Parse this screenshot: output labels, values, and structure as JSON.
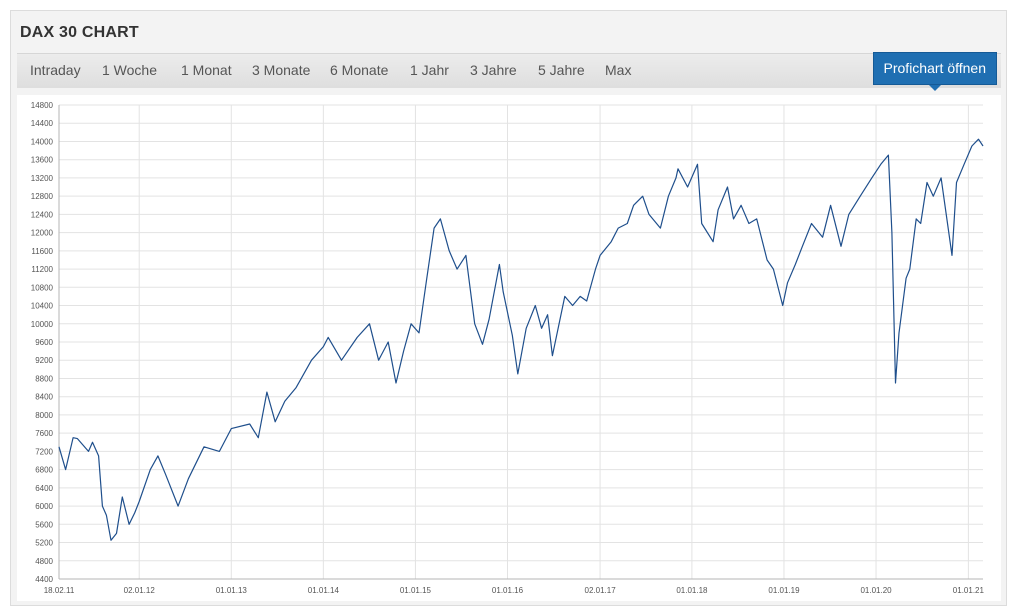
{
  "widget": {
    "title": "DAX 30 CHART",
    "tabs": [
      "Intraday",
      "1 Woche",
      "1 Monat",
      "3 Monate",
      "6 Monate",
      "1 Jahr",
      "3 Jahre",
      "5 Jahre",
      "Max"
    ],
    "pro_button": "Profichart öffnen"
  },
  "colors": {
    "line": "#1f4f8c",
    "grid": "#e3e3e3",
    "accent": "#1f6fb2"
  },
  "chart_data": {
    "type": "line",
    "title": "",
    "xlabel": "",
    "ylabel": "",
    "ylim": [
      4400,
      14800
    ],
    "yticks": [
      4400,
      4800,
      5200,
      5600,
      6000,
      6400,
      6800,
      7200,
      7600,
      8000,
      8400,
      8800,
      9200,
      9600,
      10000,
      10400,
      10800,
      11200,
      11600,
      12000,
      12400,
      12800,
      13200,
      13600,
      14000,
      14400,
      14800
    ],
    "xticks": [
      "18.02.11",
      "02.01.12",
      "01.01.13",
      "01.01.14",
      "01.01.15",
      "01.01.16",
      "02.01.17",
      "01.01.18",
      "01.01.19",
      "01.01.20",
      "01.01.21"
    ],
    "xtick_dates": [
      "2011-02-18",
      "2012-01-02",
      "2013-01-01",
      "2014-01-01",
      "2015-01-01",
      "2016-01-01",
      "2017-01-02",
      "2018-01-01",
      "2019-01-01",
      "2020-01-01",
      "2021-01-01"
    ],
    "grid": true,
    "series": [
      {
        "x": [
          "2011-02-18",
          "2011-03-16",
          "2011-04-15",
          "2011-05-02",
          "2011-06-15",
          "2011-07-01",
          "2011-07-25",
          "2011-08-09",
          "2011-08-25",
          "2011-09-12",
          "2011-10-04",
          "2011-10-27",
          "2011-11-23",
          "2011-12-15",
          "2012-01-02",
          "2012-02-15",
          "2012-03-16",
          "2012-04-15",
          "2012-06-04",
          "2012-07-15",
          "2012-09-15",
          "2012-11-15",
          "2013-01-01",
          "2013-03-15",
          "2013-04-18",
          "2013-05-22",
          "2013-06-24",
          "2013-08-01",
          "2013-09-15",
          "2013-11-15",
          "2014-01-01",
          "2014-01-20",
          "2014-03-14",
          "2014-05-15",
          "2014-07-03",
          "2014-08-08",
          "2014-09-15",
          "2014-10-16",
          "2014-11-15",
          "2014-12-15",
          "2015-01-15",
          "2015-02-15",
          "2015-03-16",
          "2015-04-10",
          "2015-05-15",
          "2015-06-15",
          "2015-07-20",
          "2015-08-24",
          "2015-09-24",
          "2015-10-20",
          "2015-11-30",
          "2015-12-15",
          "2016-01-20",
          "2016-02-11",
          "2016-03-15",
          "2016-04-20",
          "2016-05-15",
          "2016-06-08",
          "2016-06-27",
          "2016-08-15",
          "2016-09-15",
          "2016-10-15",
          "2016-11-10",
          "2016-12-15",
          "2017-01-02",
          "2017-02-15",
          "2017-03-15",
          "2017-04-20",
          "2017-05-15",
          "2017-06-20",
          "2017-07-15",
          "2017-08-29",
          "2017-09-30",
          "2017-10-30",
          "2017-11-07",
          "2017-12-15",
          "2018-01-23",
          "2018-02-09",
          "2018-03-26",
          "2018-04-15",
          "2018-05-22",
          "2018-06-15",
          "2018-07-15",
          "2018-08-15",
          "2018-09-15",
          "2018-10-26",
          "2018-11-20",
          "2018-12-27",
          "2019-01-15",
          "2019-02-15",
          "2019-03-15",
          "2019-04-20",
          "2019-06-03",
          "2019-07-05",
          "2019-08-15",
          "2019-09-15",
          "2019-10-30",
          "2019-12-15",
          "2020-01-20",
          "2020-02-19",
          "2020-03-04",
          "2020-03-18",
          "2020-04-01",
          "2020-04-29",
          "2020-05-14",
          "2020-06-08",
          "2020-06-26",
          "2020-07-21",
          "2020-08-15",
          "2020-09-15",
          "2020-10-28",
          "2020-11-15",
          "2020-12-15",
          "2021-01-15",
          "2021-02-10",
          "2021-02-28"
        ],
        "y": [
          7300,
          6800,
          7500,
          7480,
          7200,
          7400,
          7100,
          6000,
          5800,
          5250,
          5400,
          6200,
          5600,
          5850,
          6100,
          6800,
          7100,
          6700,
          6000,
          6600,
          7300,
          7200,
          7700,
          7800,
          7500,
          8500,
          7850,
          8300,
          8600,
          9200,
          9500,
          9700,
          9200,
          9700,
          10000,
          9200,
          9600,
          8700,
          9400,
          10000,
          9800,
          11000,
          12100,
          12300,
          11600,
          11200,
          11500,
          10000,
          9550,
          10100,
          11300,
          10700,
          9750,
          8900,
          9900,
          10400,
          9900,
          10200,
          9300,
          10600,
          10400,
          10600,
          10500,
          11200,
          11500,
          11800,
          12100,
          12200,
          12600,
          12800,
          12400,
          12100,
          12800,
          13200,
          13400,
          13000,
          13500,
          12200,
          11800,
          12500,
          13000,
          12300,
          12600,
          12200,
          12300,
          11400,
          11200,
          10400,
          10900,
          11300,
          11700,
          12200,
          11900,
          12600,
          11700,
          12400,
          12800,
          13200,
          13500,
          13700,
          12000,
          8700,
          9800,
          11000,
          11200,
          12300,
          12200,
          13100,
          12800,
          13200,
          11500,
          13100,
          13500,
          13900,
          14050,
          13900
        ]
      }
    ]
  }
}
